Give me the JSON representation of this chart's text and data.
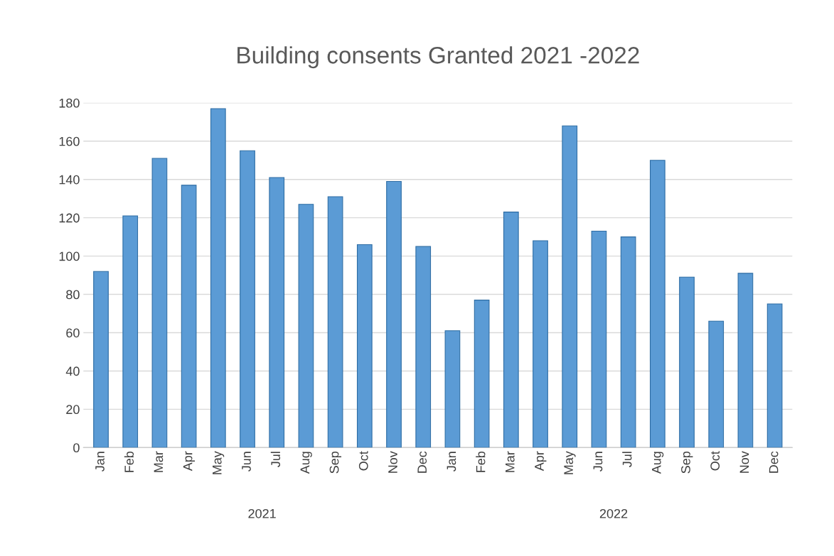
{
  "chart_data": {
    "type": "bar",
    "title": "Building consents Granted 2021 -2022",
    "categories": [
      "Jan",
      "Feb",
      "Mar",
      "Apr",
      "May",
      "Jun",
      "Jul",
      "Aug",
      "Sep",
      "Oct",
      "Nov",
      "Dec",
      "Jan",
      "Feb",
      "Mar",
      "Apr",
      "May",
      "Jun",
      "Jul",
      "Aug",
      "Sep",
      "Oct",
      "Nov",
      "Dec"
    ],
    "values": [
      92,
      121,
      151,
      137,
      177,
      155,
      141,
      127,
      131,
      106,
      139,
      105,
      61,
      77,
      123,
      108,
      168,
      113,
      110,
      150,
      89,
      66,
      91,
      75
    ],
    "color": "#5b9bd5",
    "ylim": [
      0,
      180
    ],
    "yticks": [
      0,
      20,
      40,
      60,
      80,
      100,
      120,
      140,
      160,
      180
    ],
    "grid": "y",
    "annotations": [
      "2021",
      "2022"
    ]
  }
}
